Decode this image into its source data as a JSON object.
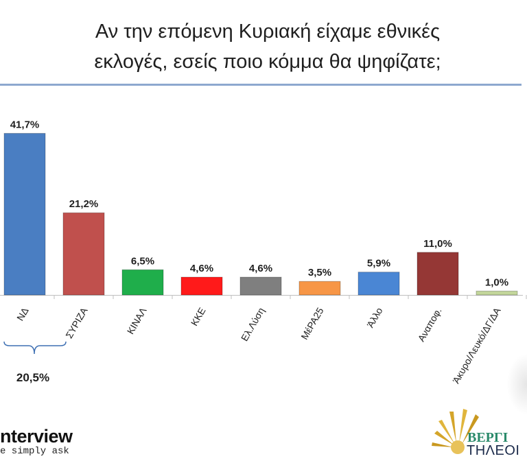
{
  "title_line1": "Αν την επόμενη Κυριακή είχαμε εθνικές",
  "title_line2": "εκλογές, εσείς ποιο κόμμα θα ψηφίζατε;",
  "chart_data": {
    "type": "bar",
    "title": "Αν την επόμενη Κυριακή είχαμε εθνικές εκλογές, εσείς ποιο κόμμα θα ψηφίζατε;",
    "xlabel": "",
    "ylabel": "",
    "ylim": [
      0,
      45
    ],
    "grid": false,
    "legend": "none",
    "categories": [
      "ΝΔ",
      "ΣΥΡΙΖΑ",
      "ΚΙΝΑΛ",
      "ΚΚΕ",
      "Ελ.Λύση",
      "ΜέΡΑ25",
      "Άλλο",
      "Αναποφ.",
      "Άκυρο/Λευκό/ΔΓ/ΔΑ"
    ],
    "values": [
      41.7,
      21.2,
      6.5,
      4.6,
      4.6,
      3.5,
      5.9,
      11.0,
      1.0
    ],
    "value_labels": [
      "41,7%",
      "21,2%",
      "6,5%",
      "4,6%",
      "4,6%",
      "3,5%",
      "5,9%",
      "11,0%",
      "1,0%"
    ],
    "colors": [
      "#4a7ec2",
      "#c0504d",
      "#1fae4b",
      "#ff1a1a",
      "#7f7f7f",
      "#f79646",
      "#4a86d4",
      "#953735",
      "#c3d69b"
    ],
    "annotation": {
      "label": "20,5%",
      "spans": [
        "ΝΔ",
        "ΣΥΡΙΖΑ"
      ]
    }
  },
  "branding": {
    "left_brand": "nterview",
    "left_tagline": "e simply ask",
    "right_logo_text": "ΒΕΡΓΙ",
    "right_sub_text": "ΤΗΛΕΟΙ"
  }
}
